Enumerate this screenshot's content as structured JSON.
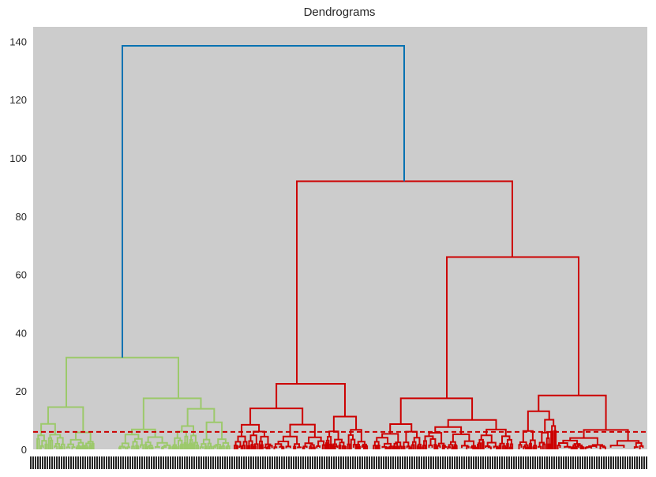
{
  "chart_data": {
    "type": "dendrogram",
    "title": "Dendrograms",
    "xlabel": "",
    "ylabel": "",
    "ylim": [
      0,
      145
    ],
    "yticks": [
      0,
      20,
      40,
      60,
      80,
      100,
      120,
      140
    ],
    "grid": false,
    "background": "#cccccc",
    "colors": {
      "root": "#0072b2",
      "cluster_green": "#9cc96b",
      "cluster_red": "#cc0000",
      "threshold": "#cc0000"
    },
    "threshold_line": 6,
    "merges": [
      {
        "id": "root",
        "height": 138.5,
        "color": "root",
        "children": [
          "green-top",
          "red-top"
        ]
      },
      {
        "id": "green-top",
        "height": 31.5,
        "color": "cluster_green",
        "children": [
          "g-left",
          "g-right"
        ]
      },
      {
        "id": "red-top",
        "height": 92,
        "color": "cluster_red",
        "children": [
          "r-left",
          "r-right"
        ]
      },
      {
        "id": "r-right",
        "height": 66,
        "color": "cluster_red",
        "children": [
          "r-right-a",
          "r-right-b"
        ]
      },
      {
        "id": "r-left",
        "height": 22.5,
        "color": "cluster_red"
      },
      {
        "id": "r-right-a",
        "height": 17.5,
        "color": "cluster_red"
      },
      {
        "id": "r-right-b",
        "height": 18.5,
        "color": "cluster_red"
      },
      {
        "id": "g-left",
        "height": 14.5,
        "color": "cluster_green"
      },
      {
        "id": "g-right",
        "height": 17.5,
        "color": "cluster_green"
      }
    ]
  }
}
